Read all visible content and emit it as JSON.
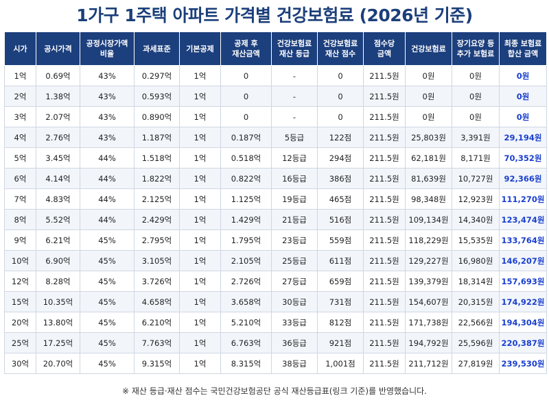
{
  "title": "1가구 1주택 아파트 가격별 건강보험료 (2026년 기준)",
  "headers": [
    "시가",
    "공시가격",
    "공정시장가액\n비율",
    "과세표준",
    "기본공제",
    "공제 후\n재산금액",
    "건강보험료\n재산 등급",
    "건강보험료\n재산 점수",
    "점수당\n금액",
    "건강보험료",
    "장기요양 등\n추가 보험료",
    "최종 보험료\n합산 금액"
  ],
  "rows": [
    [
      "1억",
      "0.69억",
      "43%",
      "0.297억",
      "1억",
      "0",
      "-",
      "0",
      "211.5원",
      "0원",
      "0원",
      "0원"
    ],
    [
      "2억",
      "1.38억",
      "43%",
      "0.593억",
      "1억",
      "0",
      "-",
      "0",
      "211.5원",
      "0원",
      "0원",
      "0원"
    ],
    [
      "3억",
      "2.07억",
      "43%",
      "0.890억",
      "1억",
      "0",
      "-",
      "0",
      "211.5원",
      "0원",
      "0원",
      "0원"
    ],
    [
      "4억",
      "2.76억",
      "43%",
      "1.187억",
      "1억",
      "0.187억",
      "5등급",
      "122점",
      "211.5원",
      "25,803원",
      "3,391원",
      "29,194원"
    ],
    [
      "5억",
      "3.45억",
      "44%",
      "1.518억",
      "1억",
      "0.518억",
      "12등급",
      "294점",
      "211.5원",
      "62,181원",
      "8,171원",
      "70,352원"
    ],
    [
      "6억",
      "4.14억",
      "44%",
      "1.822억",
      "1억",
      "0.822억",
      "16등급",
      "386점",
      "211.5원",
      "81,639원",
      "10,727원",
      "92,366원"
    ],
    [
      "7억",
      "4.83억",
      "44%",
      "2.125억",
      "1억",
      "1.125억",
      "19등급",
      "465점",
      "211.5원",
      "98,348원",
      "12,923원",
      "111,270원"
    ],
    [
      "8억",
      "5.52억",
      "44%",
      "2.429억",
      "1억",
      "1.429억",
      "21등급",
      "516점",
      "211.5원",
      "109,134원",
      "14,340원",
      "123,474원"
    ],
    [
      "9억",
      "6.21억",
      "45%",
      "2.795억",
      "1억",
      "1.795억",
      "23등급",
      "559점",
      "211.5원",
      "118,229원",
      "15,535원",
      "133,764원"
    ],
    [
      "10억",
      "6.90억",
      "45%",
      "3.105억",
      "1억",
      "2.105억",
      "25등급",
      "611점",
      "211.5원",
      "129,227원",
      "16,980원",
      "146,207원"
    ],
    [
      "12억",
      "8.28억",
      "45%",
      "3.726억",
      "1억",
      "2.726억",
      "27등급",
      "659점",
      "211.5원",
      "139,379원",
      "18,314원",
      "157,693원"
    ],
    [
      "15억",
      "10.35억",
      "45%",
      "4.658억",
      "1억",
      "3.658억",
      "30등급",
      "731점",
      "211.5원",
      "154,607원",
      "20,315원",
      "174,922원"
    ],
    [
      "20억",
      "13.80억",
      "45%",
      "6.210억",
      "1억",
      "5.210억",
      "33등급",
      "812점",
      "211.5원",
      "171,738원",
      "22,566원",
      "194,304원"
    ],
    [
      "25억",
      "17.25억",
      "45%",
      "7.763억",
      "1억",
      "6.763억",
      "36등급",
      "921점",
      "211.5원",
      "194,792원",
      "25,596원",
      "220,387원"
    ],
    [
      "30억",
      "20.70억",
      "45%",
      "9.315억",
      "1억",
      "8.315억",
      "38등급",
      "1,001점",
      "211.5원",
      "211,712원",
      "27,819원",
      "239,530원"
    ]
  ],
  "footnote": "※ 재산 등급·재산 점수는 국민건강보험공단 공식 재산등급표(링크 기준)를 반영했습니다.",
  "colors": {
    "header_bg": "#1c3f7d",
    "title": "#1b3f7a",
    "final_value": "#1a3fcf"
  }
}
